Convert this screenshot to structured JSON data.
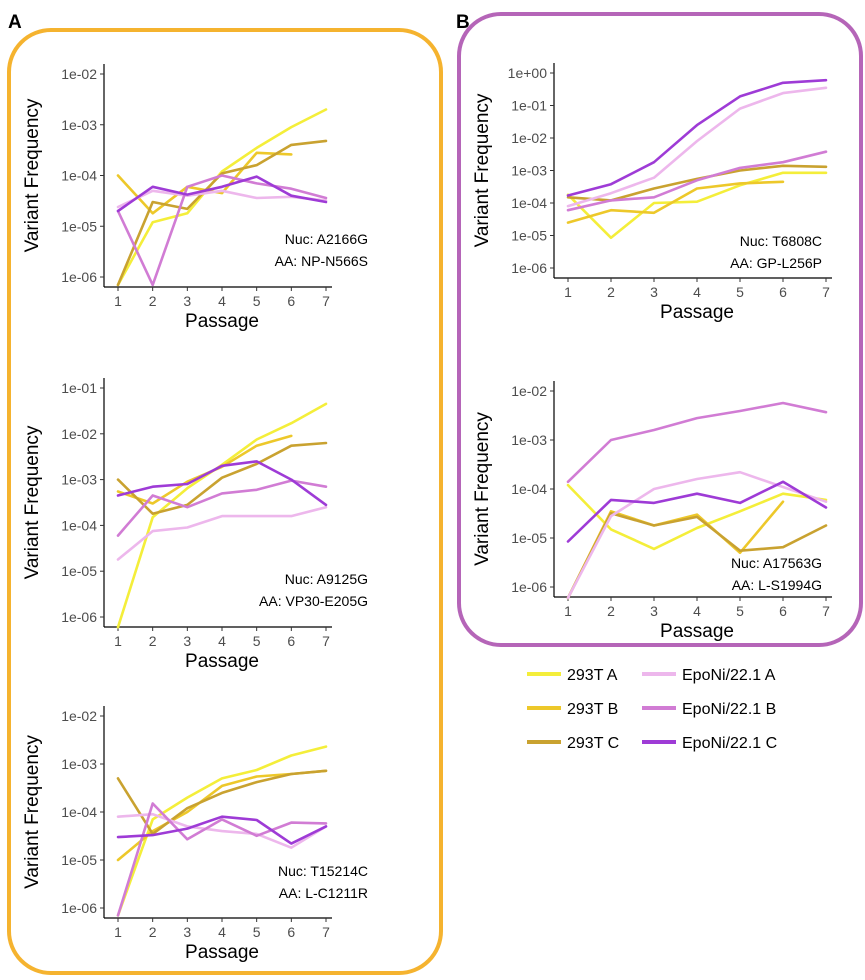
{
  "panels": [
    {
      "letter": "A",
      "color": "#F5B32F"
    },
    {
      "letter": "B",
      "color": "#B565B8"
    }
  ],
  "series_styles": [
    {
      "name": "293T A",
      "color": "#F4EE3A"
    },
    {
      "name": "293T B",
      "color": "#EDC82A"
    },
    {
      "name": "293T C",
      "color": "#C9A230"
    },
    {
      "name": "EpoNi/22.1 A",
      "color": "#EDB7EC"
    },
    {
      "name": "EpoNi/22.1 B",
      "color": "#D17CD4"
    },
    {
      "name": "EpoNi/22.1 C",
      "color": "#9E3BD6"
    }
  ],
  "chart_data": [
    {
      "type": "line",
      "panel": "A",
      "xlabel": "Passage",
      "ylabel": "Variant Frequency",
      "yscale": "log",
      "x": [
        1,
        2,
        3,
        4,
        5,
        6,
        7
      ],
      "xlim": [
        1,
        7
      ],
      "ylim_exp": [
        -6,
        -2
      ],
      "yticks": [
        "1e-06",
        "1e-05",
        "1e-04",
        "1e-03",
        "1e-02"
      ],
      "annotation": [
        "Nuc: A2166G",
        "AA: NP-N566S"
      ],
      "series": [
        {
          "name": "293T A",
          "values": [
            7e-07,
            1.2e-05,
            1.8e-05,
            0.00012,
            0.00035,
            0.0009,
            0.002
          ]
        },
        {
          "name": "293T B",
          "values": [
            0.0001,
            1.8e-05,
            6e-05,
            4.5e-05,
            0.00028,
            0.00026,
            null
          ]
        },
        {
          "name": "293T C",
          "values": [
            7e-07,
            3e-05,
            2.2e-05,
            0.00011,
            0.00016,
            0.0004,
            0.00048
          ]
        },
        {
          "name": "EpoNi/22.1 A",
          "values": [
            2.4e-05,
            5e-05,
            4e-05,
            5e-05,
            3.6e-05,
            3.8e-05,
            3.2e-05
          ]
        },
        {
          "name": "EpoNi/22.1 B",
          "values": [
            2e-05,
            7e-07,
            6e-05,
            0.0001,
            7e-05,
            5.5e-05,
            3.6e-05
          ]
        },
        {
          "name": "EpoNi/22.1 C",
          "values": [
            2e-05,
            6e-05,
            4.2e-05,
            6e-05,
            9.5e-05,
            4e-05,
            3e-05
          ]
        }
      ]
    },
    {
      "type": "line",
      "panel": "A",
      "xlabel": "Passage",
      "ylabel": "Variant Frequency",
      "yscale": "log",
      "x": [
        1,
        2,
        3,
        4,
        5,
        6,
        7
      ],
      "xlim": [
        1,
        7
      ],
      "ylim_exp": [
        -6,
        -1
      ],
      "yticks": [
        "1e-06",
        "1e-05",
        "1e-04",
        "1e-03",
        "1e-02",
        "1e-01"
      ],
      "annotation": [
        "Nuc: A9125G",
        "AA: VP30-E205G"
      ],
      "series": [
        {
          "name": "293T A",
          "values": [
            6e-07,
            0.00015,
            0.00065,
            0.0021,
            0.0075,
            0.017,
            0.045
          ]
        },
        {
          "name": "293T B",
          "values": [
            0.00055,
            0.0003,
            0.0009,
            0.0019,
            0.0055,
            0.009,
            null
          ]
        },
        {
          "name": "293T C",
          "values": [
            0.001,
            0.00018,
            0.00028,
            0.0011,
            0.0022,
            0.0055,
            0.0063
          ]
        },
        {
          "name": "EpoNi/22.1 A",
          "values": [
            1.8e-05,
            7.5e-05,
            9e-05,
            0.00016,
            0.00016,
            0.00016,
            0.00025
          ]
        },
        {
          "name": "EpoNi/22.1 B",
          "values": [
            6e-05,
            0.00045,
            0.00025,
            0.0005,
            0.0006,
            0.00095,
            0.0007
          ]
        },
        {
          "name": "EpoNi/22.1 C",
          "values": [
            0.00045,
            0.0007,
            0.0008,
            0.002,
            0.0025,
            0.001,
            0.00028
          ]
        }
      ]
    },
    {
      "type": "line",
      "panel": "A",
      "xlabel": "Passage",
      "ylabel": "Variant Frequency",
      "yscale": "log",
      "x": [
        1,
        2,
        3,
        4,
        5,
        6,
        7
      ],
      "xlim": [
        1,
        7
      ],
      "ylim_exp": [
        -6,
        -2
      ],
      "yticks": [
        "1e-06",
        "1e-05",
        "1e-04",
        "1e-03",
        "1e-02"
      ],
      "annotation": [
        "Nuc: T15214C",
        "AA: L-C1211R"
      ],
      "series": [
        {
          "name": "293T A",
          "values": [
            7e-07,
            7e-05,
            0.0002,
            0.0005,
            0.00075,
            0.0015,
            0.0023
          ]
        },
        {
          "name": "293T B",
          "values": [
            1e-05,
            4e-05,
            0.0001,
            0.00035,
            0.00055,
            0.00062,
            0.00072
          ]
        },
        {
          "name": "293T C",
          "values": [
            0.0005,
            3.5e-05,
            0.00012,
            0.00025,
            0.00042,
            0.00062,
            0.00072
          ]
        },
        {
          "name": "EpoNi/22.1 A",
          "values": [
            8e-05,
            9e-05,
            5e-05,
            4e-05,
            3.5e-05,
            1.8e-05,
            5e-05
          ]
        },
        {
          "name": "EpoNi/22.1 B",
          "values": [
            7e-07,
            0.00015,
            2.7e-05,
            7e-05,
            3.2e-05,
            6e-05,
            5.8e-05
          ]
        },
        {
          "name": "EpoNi/22.1 C",
          "values": [
            3e-05,
            3.3e-05,
            4.5e-05,
            8e-05,
            6.8e-05,
            2.2e-05,
            5e-05
          ]
        }
      ]
    },
    {
      "type": "line",
      "panel": "B",
      "xlabel": "Passage",
      "ylabel": "Variant Frequency",
      "yscale": "log",
      "x": [
        1,
        2,
        3,
        4,
        5,
        6,
        7
      ],
      "xlim": [
        1,
        7
      ],
      "ylim_exp": [
        -6,
        0
      ],
      "yticks": [
        "1e-06",
        "1e-05",
        "1e-04",
        "1e-03",
        "1e-02",
        "1e-01",
        "1e+00"
      ],
      "annotation": [
        "Nuc: T6808C",
        "AA: GP-L256P"
      ],
      "series": [
        {
          "name": "293T A",
          "values": [
            0.00018,
            8.5e-06,
            0.0001,
            0.00011,
            0.00035,
            0.00085,
            0.00085
          ]
        },
        {
          "name": "293T B",
          "values": [
            2.5e-05,
            6e-05,
            5e-05,
            0.00028,
            0.0004,
            0.00045,
            null
          ]
        },
        {
          "name": "293T C",
          "values": [
            0.00015,
            0.00012,
            0.00028,
            0.00055,
            0.001,
            0.0014,
            0.0013
          ]
        },
        {
          "name": "EpoNi/22.1 A",
          "values": [
            8e-05,
            0.0002,
            0.0006,
            0.008,
            0.08,
            0.24,
            0.35
          ]
        },
        {
          "name": "EpoNi/22.1 B",
          "values": [
            6e-05,
            0.00012,
            0.00015,
            0.0005,
            0.0012,
            0.0018,
            0.0038
          ]
        },
        {
          "name": "EpoNi/22.1 C",
          "values": [
            0.00017,
            0.00038,
            0.0018,
            0.025,
            0.19,
            0.5,
            0.6
          ]
        }
      ]
    },
    {
      "type": "line",
      "panel": "B",
      "xlabel": "Passage",
      "ylabel": "Variant Frequency",
      "yscale": "log",
      "x": [
        1,
        2,
        3,
        4,
        5,
        6,
        7
      ],
      "xlim": [
        1,
        7
      ],
      "ylim_exp": [
        -6,
        -2
      ],
      "yticks": [
        "1e-06",
        "1e-05",
        "1e-04",
        "1e-03",
        "1e-02"
      ],
      "annotation": [
        "Nuc: A17563G",
        "AA: L-S1994G"
      ],
      "series": [
        {
          "name": "293T A",
          "values": [
            0.00012,
            1.5e-05,
            6e-06,
            1.6e-05,
            3.5e-05,
            8e-05,
            6e-05
          ]
        },
        {
          "name": "293T B",
          "values": [
            6e-07,
            3.5e-05,
            1.8e-05,
            3e-05,
            5e-06,
            5.5e-05,
            null
          ]
        },
        {
          "name": "293T C",
          "values": [
            6e-07,
            3.2e-05,
            1.8e-05,
            2.7e-05,
            5.5e-06,
            6.5e-06,
            1.8e-05
          ]
        },
        {
          "name": "EpoNi/22.1 A",
          "values": [
            6e-07,
            2.8e-05,
            0.0001,
            0.00016,
            0.00022,
            0.00011,
            5.5e-05
          ]
        },
        {
          "name": "EpoNi/22.1 B",
          "values": [
            0.00014,
            0.001,
            0.0016,
            0.0028,
            0.0039,
            0.0057,
            0.0037
          ]
        },
        {
          "name": "EpoNi/22.1 C",
          "values": [
            8.5e-06,
            6e-05,
            5.2e-05,
            8e-05,
            5.2e-05,
            0.00014,
            4.2e-05
          ]
        }
      ]
    }
  ]
}
